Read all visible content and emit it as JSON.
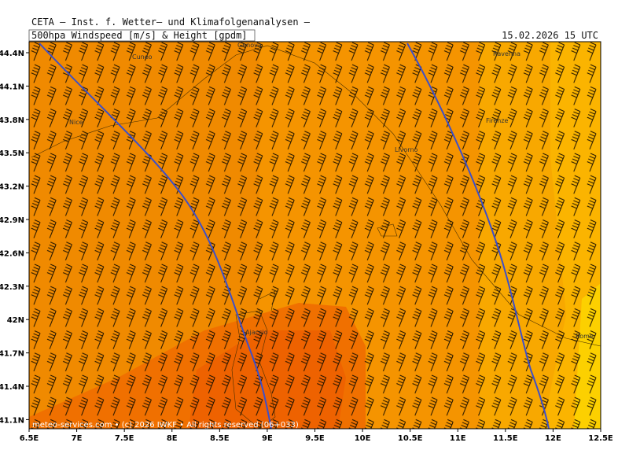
{
  "header": {
    "institute": "CETA — Inst. f. Wetter— und Klimafolgenanalysen —",
    "product": "500hpa Windspeed [m/s] & Height [gpdm]",
    "valid": "15.02.2026 15 UTC"
  },
  "axes": {
    "y_ticks": [
      "44.4N",
      "44.1N",
      "43.8N",
      "43.5N",
      "43.2N",
      "42.9N",
      "42.6N",
      "42.3N",
      "42N",
      "41.7N",
      "41.4N",
      "41.1N"
    ],
    "x_ticks": [
      "6.5E",
      "7E",
      "7.5E",
      "8E",
      "8.5E",
      "9E",
      "9.5E",
      "10E",
      "10.5E",
      "11E",
      "11.5E",
      "12E",
      "12.5E"
    ]
  },
  "places": [
    "Cuneo",
    "Genova",
    "Ravenna",
    "Nice",
    "Firenze",
    "Livorno",
    "Ajaccio",
    "Rome"
  ],
  "footer": "meteo-services.com • (c) 2026 IWKF • All rights reserved (06+033)"
}
